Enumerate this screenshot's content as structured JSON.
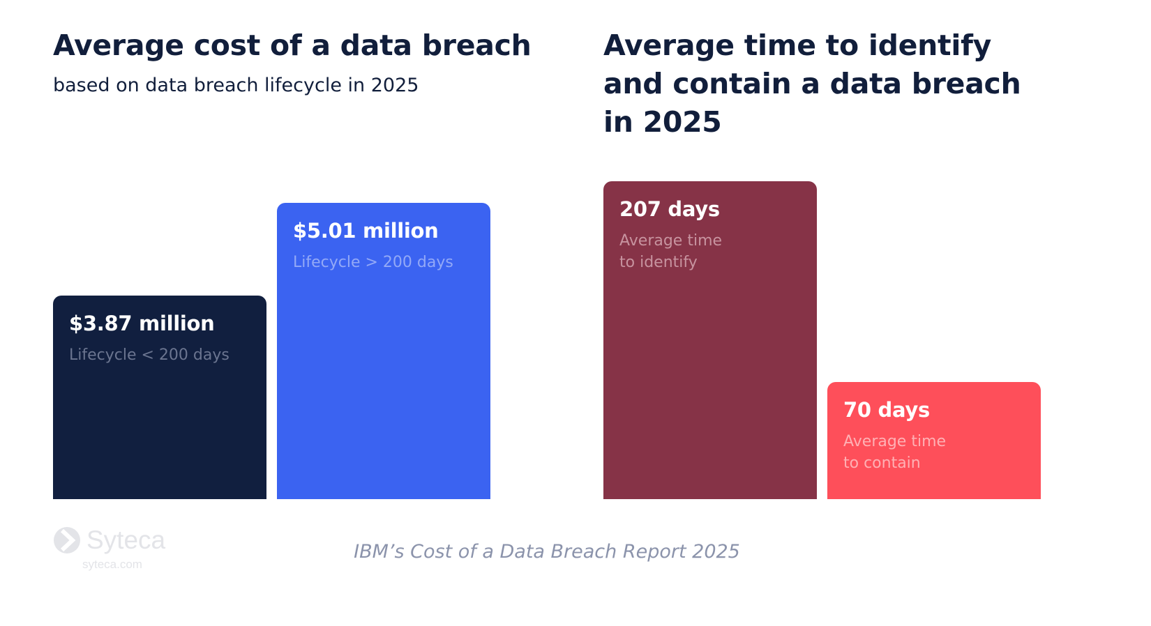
{
  "chart_data": [
    {
      "type": "bar",
      "title": "Average cost of a data breach",
      "subtitle": "based on data breach lifecycle in 2025",
      "unit": "million USD",
      "categories": [
        "Lifecycle < 200 days",
        "Lifecycle > 200 days"
      ],
      "values": [
        3.87,
        5.01
      ],
      "value_labels": [
        "$3.87 million",
        "$5.01 million"
      ],
      "colors": [
        "#111f3f",
        "#3b63f1"
      ],
      "label_colors": [
        "#6b7590",
        "#93a9f7"
      ],
      "xlabel": "",
      "ylabel": "",
      "grid": false,
      "legend": "none"
    },
    {
      "type": "bar",
      "title": "Average time to identify and contain a data breach in 2025",
      "unit": "days",
      "categories": [
        "Average time\nto identify",
        "Average time\nto contain"
      ],
      "values": [
        207,
        70
      ],
      "value_labels": [
        "207 days",
        "70 days"
      ],
      "colors": [
        "#863347",
        "#fe4f5a"
      ],
      "label_colors": [
        "#c7939f",
        "#ffb0b4"
      ],
      "xlabel": "",
      "ylabel": "",
      "grid": false,
      "legend": "none"
    }
  ],
  "footer": {
    "source": "IBM’s Cost of a Data Breach Report 2025",
    "brand": "Syteca",
    "brand_url": "syteca.com",
    "logo_icon": "chevron-right-circle-icon"
  }
}
